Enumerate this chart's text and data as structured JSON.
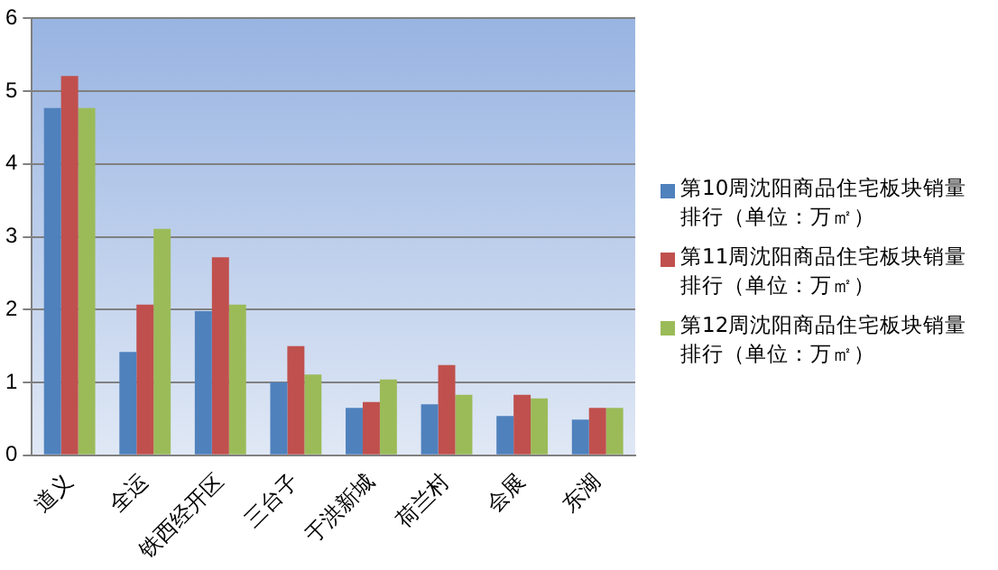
{
  "chart_data": {
    "type": "bar",
    "categories": [
      "道义",
      "全运",
      "铁西经开区",
      "三台子",
      "于洪新城",
      "荷兰村",
      "会展",
      "东湖"
    ],
    "series": [
      {
        "name": "第10周沈阳商品住宅板块销量排行（单位：万㎡）",
        "color": "#4f81bd",
        "values": [
          4.77,
          1.42,
          1.98,
          1.0,
          0.65,
          0.7,
          0.54,
          0.49
        ]
      },
      {
        "name": "第11周沈阳商品住宅板块销量排行（单位：万㎡）",
        "color": "#c0504d",
        "values": [
          5.21,
          2.07,
          2.72,
          1.5,
          0.73,
          1.24,
          0.83,
          0.65
        ]
      },
      {
        "name": "第12周沈阳商品住宅板块销量排行（单位：万㎡）",
        "color": "#9bbb59",
        "values": [
          4.77,
          3.11,
          2.07,
          1.11,
          1.04,
          0.83,
          0.78,
          0.65
        ]
      }
    ],
    "ylim": [
      0,
      6
    ],
    "yticks": [
      0,
      1,
      2,
      3,
      4,
      5,
      6
    ],
    "grid": "y",
    "legend": "right"
  }
}
